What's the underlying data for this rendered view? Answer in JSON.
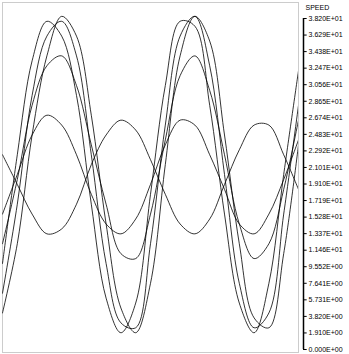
{
  "chart_data": {
    "type": "line",
    "tick_labels": false,
    "grid": false,
    "xlim": [
      0,
      300
    ],
    "ylim": [
      0,
      354
    ],
    "x": [
      0,
      15,
      30,
      45,
      60,
      75,
      90,
      105,
      120,
      135,
      150,
      165,
      180,
      195,
      210,
      225,
      240,
      255,
      270,
      285,
      300
    ],
    "series": [
      {
        "color": "#000000",
        "values": [
          60,
          150,
          260,
          320,
          335,
          300,
          200,
          90,
          30,
          25,
          110,
          230,
          320,
          340,
          290,
          180,
          70,
          25,
          40,
          140,
          250
        ]
      },
      {
        "color": "#000000",
        "values": [
          40,
          110,
          220,
          300,
          340,
          320,
          240,
          130,
          45,
          20,
          70,
          190,
          300,
          340,
          315,
          220,
          110,
          35,
          25,
          100,
          210
        ]
      },
      {
        "color": "#000000",
        "values": [
          90,
          200,
          295,
          335,
          320,
          260,
          150,
          55,
          20,
          50,
          160,
          270,
          335,
          330,
          250,
          140,
          50,
          20,
          70,
          180,
          285
        ]
      },
      {
        "color": "#000000",
        "values": [
          140,
          180,
          220,
          240,
          230,
          200,
          160,
          130,
          120,
          135,
          170,
          210,
          235,
          230,
          200,
          165,
          130,
          120,
          140,
          175,
          215
        ]
      },
      {
        "color": "#000000",
        "values": [
          200,
          170,
          140,
          120,
          125,
          150,
          190,
          220,
          235,
          225,
          195,
          160,
          130,
          120,
          135,
          170,
          205,
          230,
          230,
          200,
          165
        ]
      },
      {
        "color": "#000000",
        "values": [
          110,
          175,
          250,
          290,
          300,
          270,
          210,
          150,
          100,
          95,
          140,
          215,
          280,
          300,
          265,
          200,
          130,
          95,
          110,
          165,
          235
        ]
      }
    ],
    "colorbar": {
      "label": "SPEED",
      "range": [
        0,
        38.2
      ],
      "ticks": [
        {
          "value": 38.2,
          "label": "3.820E+01"
        },
        {
          "value": 36.29,
          "label": "3.629E+01"
        },
        {
          "value": 34.38,
          "label": "3.438E+01"
        },
        {
          "value": 32.47,
          "label": "3.247E+01"
        },
        {
          "value": 30.56,
          "label": "3.056E+01"
        },
        {
          "value": 28.65,
          "label": "2.865E+01"
        },
        {
          "value": 26.74,
          "label": "2.674E+01"
        },
        {
          "value": 24.83,
          "label": "2.483E+01"
        },
        {
          "value": 22.92,
          "label": "2.292E+01"
        },
        {
          "value": 21.01,
          "label": "2.101E+01"
        },
        {
          "value": 19.1,
          "label": "1.910E+01"
        },
        {
          "value": 17.19,
          "label": "1.719E+01"
        },
        {
          "value": 15.28,
          "label": "1.528E+01"
        },
        {
          "value": 13.37,
          "label": "1.337E+01"
        },
        {
          "value": 11.46,
          "label": "1.146E+01"
        },
        {
          "value": 9.552,
          "label": "9.552E+00"
        },
        {
          "value": 7.641,
          "label": "7.641E+00"
        },
        {
          "value": 5.731,
          "label": "5.731E+00"
        },
        {
          "value": 3.82,
          "label": "3.820E+00"
        },
        {
          "value": 1.91,
          "label": "1.910E+00"
        },
        {
          "value": 0,
          "label": "0.000E+00"
        }
      ]
    }
  }
}
